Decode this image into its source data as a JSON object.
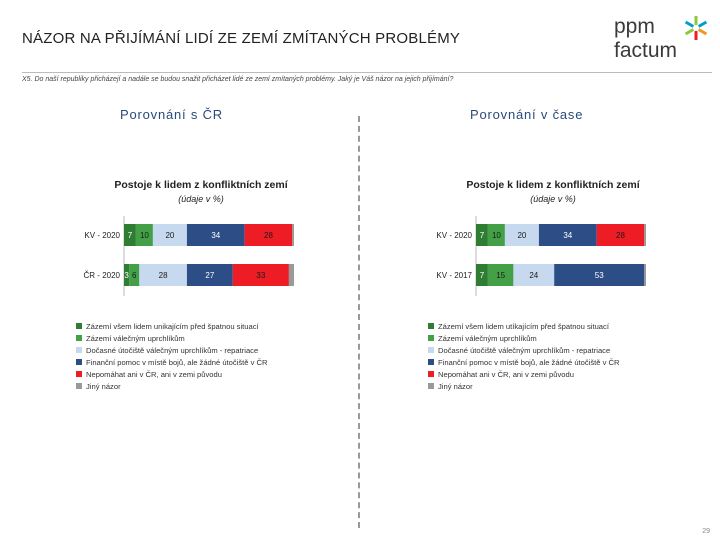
{
  "header": {
    "title": "NÁZOR NA PŘIJÍMÁNÍ LIDÍ ZE ZEMÍ ZMÍTANÝCH PROBLÉMY",
    "question": "X5. Do naší republiky přicházejí a nadále se budou snažit přicházet lidé ze zemí zmítaných problémy. Jaký je Váš názor na jejich přijímání?"
  },
  "logo": {
    "line1": "ppm",
    "line2": "factum"
  },
  "sections": {
    "left": "Porovnání s ČR",
    "right": "Porovnání v čase"
  },
  "colors": [
    "#2e7d32",
    "#43a047",
    "#c6d9ee",
    "#2c4d86",
    "#ee1c25",
    "#9a9a9a"
  ],
  "chart_data": [
    {
      "type": "bar",
      "orientation": "horizontal-stacked-100",
      "title": "Postoje k lidem z konfliktních zemí",
      "subtitle": "(údaje v %)",
      "categories": [
        "KV - 2020",
        "ČR - 2020"
      ],
      "series": [
        {
          "name": "Zázemí všem lidem unikajícím před špatnou situací",
          "values": [
            7,
            3
          ]
        },
        {
          "name": "Zázemí válečným uprchlíkům",
          "values": [
            10,
            6
          ]
        },
        {
          "name": "Dočasné útočiště válečným uprchlíkům - repatriace",
          "values": [
            20,
            28
          ]
        },
        {
          "name": "Finanční pomoc v místě bojů, ale žádné útočiště v ČR",
          "values": [
            34,
            27
          ]
        },
        {
          "name": "Nepomáhat ani v ČR, ani v zemi původu",
          "values": [
            28,
            33
          ]
        },
        {
          "name": "Jiný názor",
          "values": [
            1,
            3
          ]
        }
      ],
      "xlim": [
        0,
        100
      ]
    },
    {
      "type": "bar",
      "orientation": "horizontal-stacked-100",
      "title": "Postoje k lidem z konfliktních zemí",
      "subtitle": "(údaje v %)",
      "categories": [
        "KV - 2020",
        "KV - 2017"
      ],
      "series": [
        {
          "name": "Zázemí všem lidem utíkajícím před špatnou situací",
          "values": [
            7,
            7
          ]
        },
        {
          "name": "Zázemí válečným uprchlíkům",
          "values": [
            10,
            15
          ]
        },
        {
          "name": "Dočasné útočiště válečným uprchlíkům - repatriace",
          "values": [
            20,
            24
          ]
        },
        {
          "name": "Finanční pomoc v místě bojů, ale žádné útočiště v ČR",
          "values": [
            34,
            53
          ]
        },
        {
          "name": "Nepomáhat ani v ČR, ani v zemi původu",
          "values": [
            28,
            0
          ]
        },
        {
          "name": "Jiný názor",
          "values": [
            1,
            1
          ]
        }
      ],
      "xlim": [
        0,
        100
      ]
    }
  ],
  "page_number": "29"
}
